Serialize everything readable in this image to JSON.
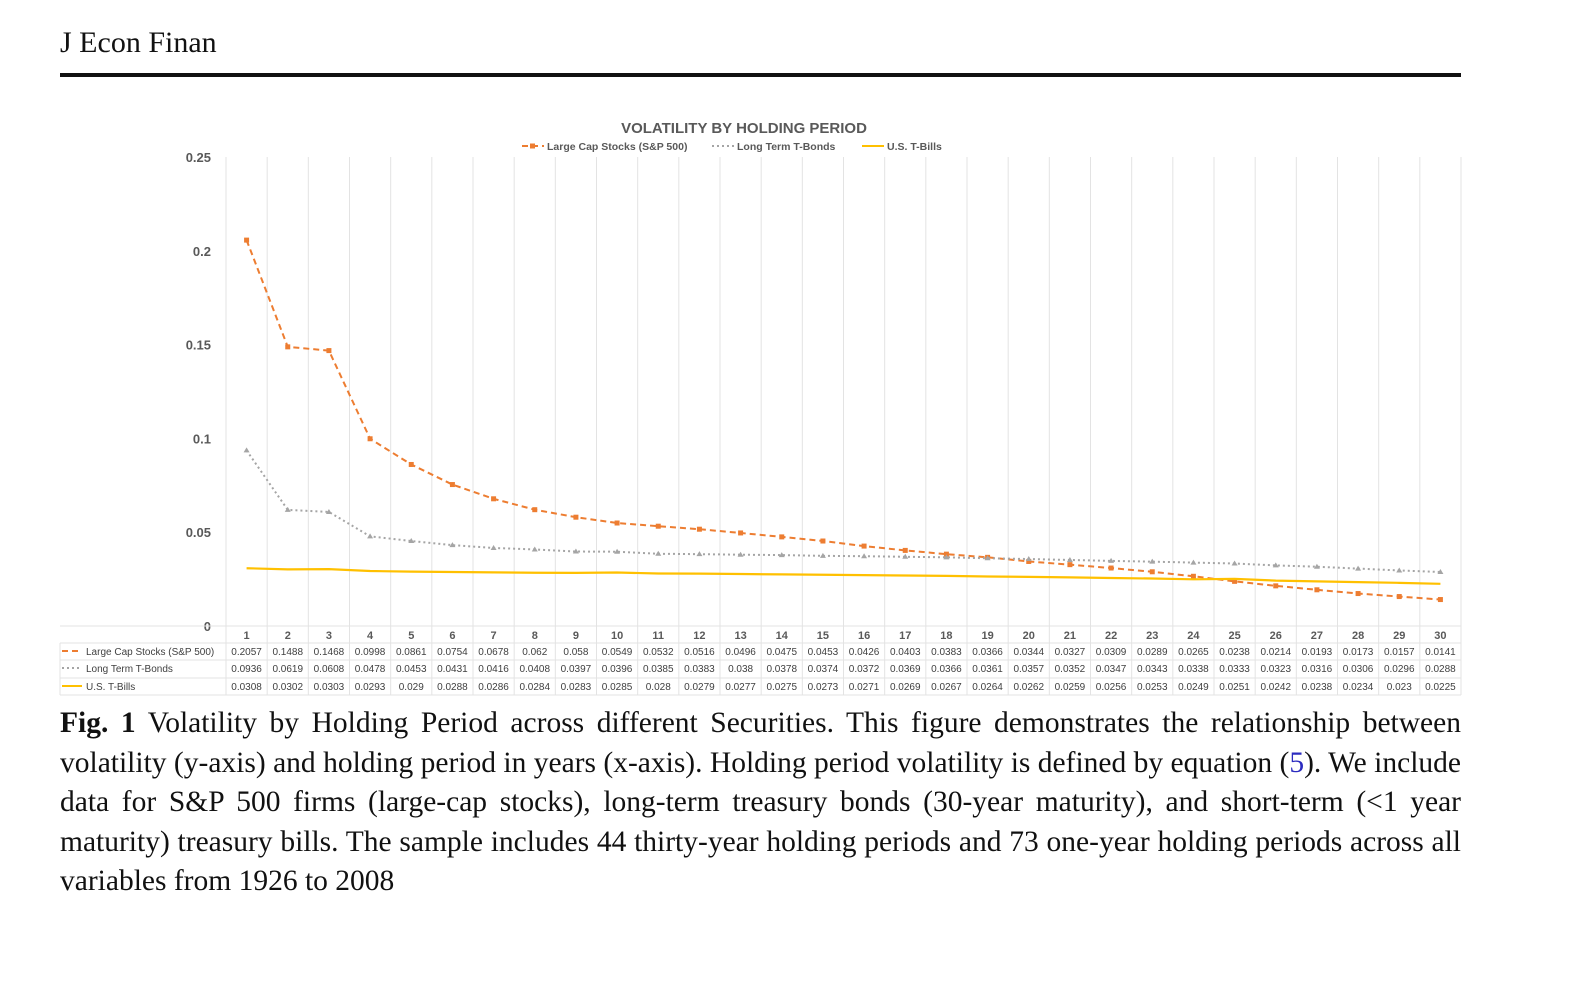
{
  "header": {
    "journal": "J Econ Finan"
  },
  "chart_data": {
    "type": "line",
    "title": "VOLATILITY BY HOLDING PERIOD",
    "xlabel": "",
    "ylabel": "",
    "categories": [
      1,
      2,
      3,
      4,
      5,
      6,
      7,
      8,
      9,
      10,
      11,
      12,
      13,
      14,
      15,
      16,
      17,
      18,
      19,
      20,
      21,
      22,
      23,
      24,
      25,
      26,
      27,
      28,
      29,
      30
    ],
    "ylim": [
      0,
      0.25
    ],
    "yticks": [
      "0",
      "0.05",
      "0.1",
      "0.15",
      "0.2",
      "0.25"
    ],
    "grid": "vertical",
    "legend": "top",
    "data_table": true,
    "series": [
      {
        "name": "Large Cap Stocks (S&P 500)",
        "color": "#ed7d31",
        "style": "dashed-square",
        "values": [
          0.2057,
          0.1488,
          0.1468,
          0.0998,
          0.0861,
          0.0754,
          0.0678,
          0.062,
          0.058,
          0.0549,
          0.0532,
          0.0516,
          0.0496,
          0.0475,
          0.0453,
          0.0426,
          0.0403,
          0.0383,
          0.0366,
          0.0344,
          0.0327,
          0.0309,
          0.0289,
          0.0265,
          0.0238,
          0.0214,
          0.0193,
          0.0173,
          0.0157,
          0.0141
        ]
      },
      {
        "name": "Long Term T-Bonds",
        "color": "#a5a5a5",
        "style": "dotted-triangle",
        "values": [
          0.0936,
          0.0619,
          0.0608,
          0.0478,
          0.0453,
          0.0431,
          0.0416,
          0.0408,
          0.0397,
          0.0396,
          0.0385,
          0.0383,
          0.038,
          0.0378,
          0.0374,
          0.0372,
          0.0369,
          0.0366,
          0.0361,
          0.0357,
          0.0352,
          0.0347,
          0.0343,
          0.0338,
          0.0333,
          0.0323,
          0.0316,
          0.0306,
          0.0296,
          0.0288
        ]
      },
      {
        "name": "U.S.  T-Bills",
        "color": "#ffc000",
        "style": "solid",
        "values": [
          0.0308,
          0.0302,
          0.0303,
          0.0293,
          0.029,
          0.0288,
          0.0286,
          0.0284,
          0.0283,
          0.0285,
          0.028,
          0.0279,
          0.0277,
          0.0275,
          0.0273,
          0.0271,
          0.0269,
          0.0267,
          0.0264,
          0.0262,
          0.0259,
          0.0256,
          0.0253,
          0.0249,
          0.0251,
          0.0242,
          0.0238,
          0.0234,
          0.023,
          0.0225
        ]
      }
    ]
  },
  "caption": {
    "label": "Fig. 1",
    "text_1": " Volatility by Holding Period across different Securities. This figure demonstrates the relationship between volatility (y-axis) and holding period in years (x-axis). Holding period volatility is defined by equation (",
    "ref": "5",
    "text_2": "). We include data for S&P 500 firms (large-cap stocks), long-term treasury bonds (30-year maturity), and short-term (<1 year maturity) treasury bills. The sample includes 44 thirty-year holding periods and 73 one-year holding periods across all variables from 1926 to 2008"
  }
}
